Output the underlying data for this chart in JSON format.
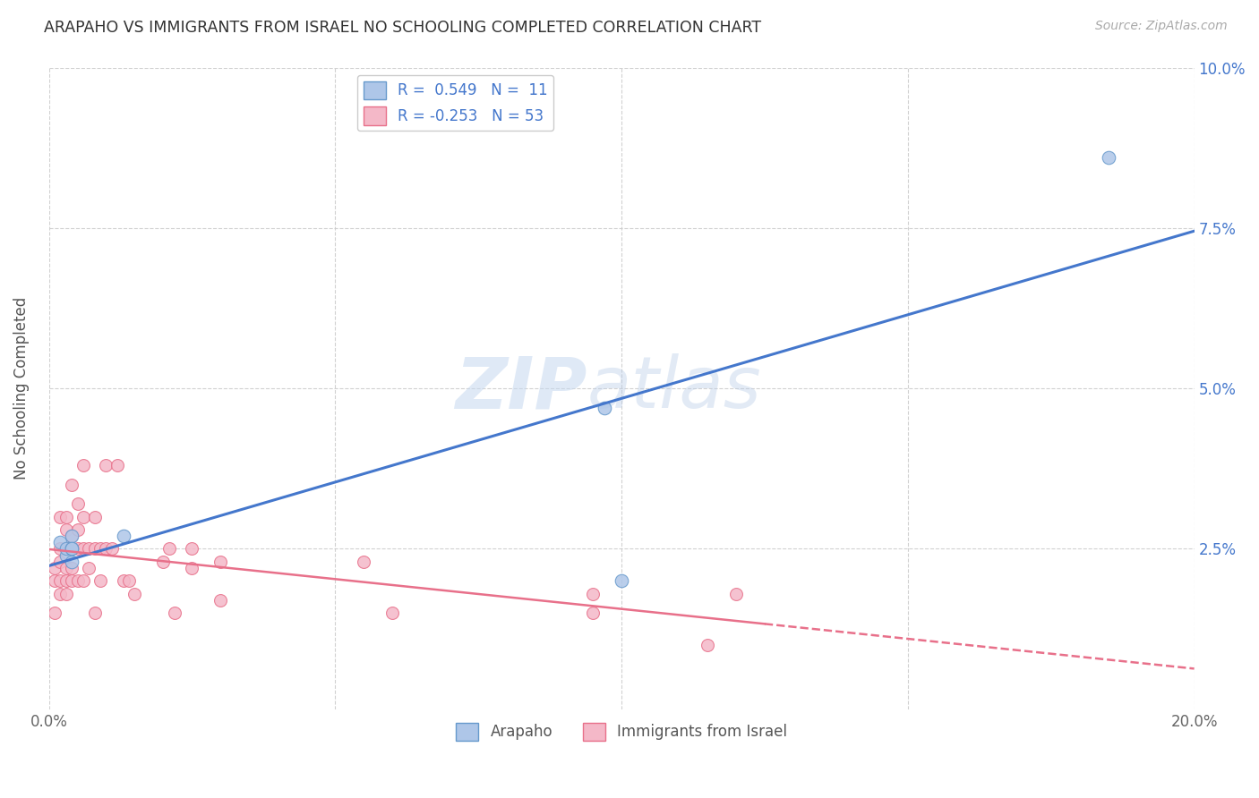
{
  "title": "ARAPAHO VS IMMIGRANTS FROM ISRAEL NO SCHOOLING COMPLETED CORRELATION CHART",
  "source": "Source: ZipAtlas.com",
  "ylabel": "No Schooling Completed",
  "xmin": 0.0,
  "xmax": 0.2,
  "ymin": 0.0,
  "ymax": 0.1,
  "xtick_labels": [
    "0.0%",
    "",
    "",
    "",
    "20.0%"
  ],
  "xtick_vals": [
    0.0,
    0.05,
    0.1,
    0.15,
    0.2
  ],
  "ytick_labels": [
    "2.5%",
    "5.0%",
    "7.5%",
    "10.0%"
  ],
  "ytick_vals": [
    0.025,
    0.05,
    0.075,
    0.1
  ],
  "arapaho_R": 0.549,
  "arapaho_N": 11,
  "israel_R": -0.253,
  "israel_N": 53,
  "arapaho_color": "#aec6e8",
  "israel_color": "#f4b8c8",
  "arapaho_edge_color": "#6699cc",
  "israel_edge_color": "#e8708a",
  "arapaho_line_color": "#4477cc",
  "israel_line_color": "#e8708a",
  "arapaho_x": [
    0.013,
    0.002,
    0.003,
    0.003,
    0.004,
    0.004,
    0.004,
    0.004,
    0.097,
    0.1,
    0.185
  ],
  "arapaho_y": [
    0.027,
    0.026,
    0.024,
    0.025,
    0.023,
    0.025,
    0.027,
    0.025,
    0.047,
    0.02,
    0.086
  ],
  "israel_x": [
    0.001,
    0.001,
    0.001,
    0.002,
    0.002,
    0.002,
    0.002,
    0.002,
    0.003,
    0.003,
    0.003,
    0.003,
    0.003,
    0.003,
    0.004,
    0.004,
    0.004,
    0.004,
    0.005,
    0.005,
    0.005,
    0.005,
    0.006,
    0.006,
    0.006,
    0.006,
    0.007,
    0.007,
    0.008,
    0.008,
    0.008,
    0.009,
    0.009,
    0.01,
    0.01,
    0.011,
    0.012,
    0.013,
    0.014,
    0.015,
    0.02,
    0.021,
    0.022,
    0.025,
    0.025,
    0.03,
    0.03,
    0.055,
    0.06,
    0.095,
    0.095,
    0.115,
    0.12
  ],
  "israel_y": [
    0.022,
    0.02,
    0.015,
    0.03,
    0.025,
    0.023,
    0.02,
    0.018,
    0.03,
    0.028,
    0.025,
    0.022,
    0.02,
    0.018,
    0.035,
    0.027,
    0.022,
    0.02,
    0.032,
    0.028,
    0.025,
    0.02,
    0.038,
    0.03,
    0.025,
    0.02,
    0.025,
    0.022,
    0.03,
    0.025,
    0.015,
    0.025,
    0.02,
    0.038,
    0.025,
    0.025,
    0.038,
    0.02,
    0.02,
    0.018,
    0.023,
    0.025,
    0.015,
    0.025,
    0.022,
    0.023,
    0.017,
    0.023,
    0.015,
    0.018,
    0.015,
    0.01,
    0.018
  ],
  "watermark_zip": "ZIP",
  "watermark_atlas": "atlas",
  "background_color": "#ffffff",
  "grid_color": "#cccccc"
}
